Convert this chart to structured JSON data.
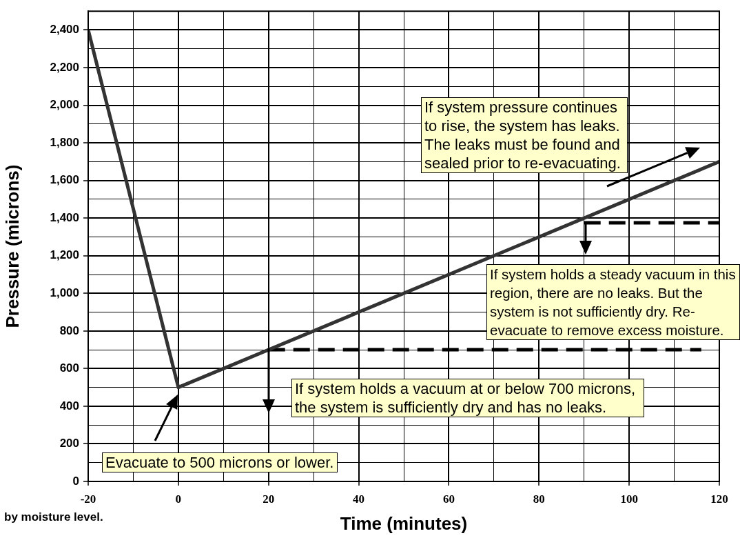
{
  "chart_data": {
    "type": "line",
    "xlabel": "Time (minutes)",
    "ylabel": "Pressure (microns)",
    "xlim": [
      -20,
      120
    ],
    "xticks": [
      -20,
      {
        "value": -10,
        "label": null
      },
      0,
      {
        "value": 10,
        "label": null
      },
      20,
      {
        "value": 30,
        "label": null
      },
      40,
      {
        "value": 50,
        "label": null
      },
      60,
      {
        "value": 70,
        "label": null
      },
      80,
      {
        "value": 90,
        "label": null
      },
      100,
      {
        "value": 110,
        "label": null
      },
      120
    ],
    "ylim": [
      0,
      2500
    ],
    "yticks": [
      0,
      {
        "value": 100,
        "label": null
      },
      200,
      {
        "value": 300,
        "label": null
      },
      400,
      {
        "value": 500,
        "label": null
      },
      600,
      {
        "value": 700,
        "label": null
      },
      800,
      {
        "value": 900,
        "label": null
      },
      {
        "value": 1000,
        "label": "1,000"
      },
      {
        "value": 1100,
        "label": null
      },
      {
        "value": 1200,
        "label": "1,200"
      },
      {
        "value": 1300,
        "label": null
      },
      {
        "value": 1400,
        "label": "1,400"
      },
      {
        "value": 1500,
        "label": null
      },
      {
        "value": 1600,
        "label": "1,600"
      },
      {
        "value": 1700,
        "label": null
      },
      {
        "value": 1800,
        "label": "1,800"
      },
      {
        "value": 1900,
        "label": null
      },
      {
        "value": 2000,
        "label": "2,000"
      },
      {
        "value": 2100,
        "label": null
      },
      {
        "value": 2200,
        "label": "2,200"
      },
      {
        "value": 2300,
        "label": null
      },
      {
        "value": 2400,
        "label": "2,400"
      },
      {
        "value": 2500,
        "label": null
      }
    ],
    "grid": true,
    "marker": "none",
    "series": [
      {
        "color": "#333333",
        "x": [
          -20,
          0,
          120
        ],
        "values": [
          2400,
          500,
          1700
        ],
        "line_style": "solid"
      },
      {
        "color": "#000000",
        "x": [
          20,
          116
        ],
        "values": [
          700,
          700
        ],
        "line_style": "dashed"
      },
      {
        "color": "#000000",
        "x": [
          90,
          120
        ],
        "values": [
          1375,
          1375
        ],
        "line_style": "dashed"
      }
    ],
    "annotations": [
      "Evacuate to 500 microns or lower.",
      "If system holds a vacuum at or below 700 microns, the system is sufficiently dry and has no leaks.",
      "If system holds a steady vacuum in this region, there are no leaks. But the system is not sufficiently dry. Re-evacuate to remove excess moisture.",
      "If system pressure continues to rise, the system has leaks. The leaks must be found and sealed prior to re-evacuating.",
      "by moisture level."
    ]
  }
}
